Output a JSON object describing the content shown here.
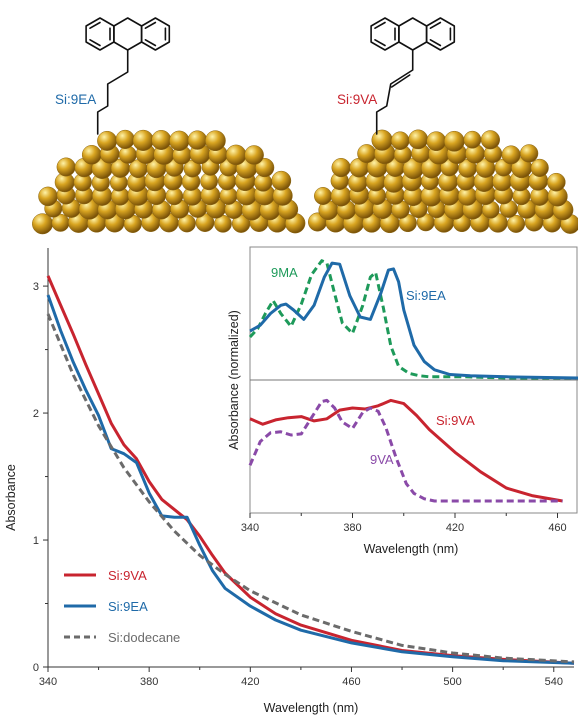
{
  "colors": {
    "si9va": "#c8242f",
    "si9ea": "#1f6aa8",
    "dodecane": "#6b6b6b",
    "ma9": "#1e9a5a",
    "va9": "#8a4aa8",
    "gold": "#d9a521"
  },
  "molecules": [
    {
      "label": "Si:9EA",
      "color": "#1f6aa8",
      "linker": "ethyl"
    },
    {
      "label": "Si:9VA",
      "color": "#c8242f",
      "linker": "vinyl"
    }
  ],
  "chart_data": [
    {
      "type": "line",
      "xlabel": "Wavelength (nm)",
      "ylabel": "Absorbance",
      "xlim": [
        340,
        548
      ],
      "ylim": [
        0,
        3.3
      ],
      "xticks": [
        "340",
        "380",
        "420",
        "460",
        "500",
        "540"
      ],
      "xtick_values": [
        340,
        380,
        420,
        460,
        500,
        540
      ],
      "yticks": [
        "0",
        "1",
        "2",
        "3"
      ],
      "ytick_values": [
        0,
        1,
        2,
        3
      ],
      "legend_position": "bottom-left",
      "series": [
        {
          "name": "Si:9VA",
          "color": "#c8242f",
          "dash": false,
          "x": [
            340,
            345,
            350,
            355,
            360,
            365,
            370,
            375,
            380,
            385,
            390,
            395,
            400,
            405,
            410,
            420,
            430,
            440,
            460,
            480,
            500,
            520,
            548
          ],
          "y": [
            3.08,
            2.85,
            2.62,
            2.38,
            2.15,
            1.92,
            1.75,
            1.64,
            1.46,
            1.32,
            1.24,
            1.16,
            1.03,
            0.88,
            0.74,
            0.55,
            0.42,
            0.33,
            0.21,
            0.13,
            0.09,
            0.06,
            0.03
          ]
        },
        {
          "name": "Si:9EA",
          "color": "#1f6aa8",
          "dash": false,
          "x": [
            340,
            345,
            350,
            355,
            360,
            365,
            370,
            375,
            380,
            385,
            390,
            395,
            400,
            405,
            410,
            420,
            430,
            440,
            460,
            480,
            500,
            520,
            548
          ],
          "y": [
            2.93,
            2.65,
            2.4,
            2.18,
            1.98,
            1.72,
            1.68,
            1.61,
            1.37,
            1.19,
            1.18,
            1.18,
            0.96,
            0.76,
            0.62,
            0.48,
            0.37,
            0.29,
            0.19,
            0.12,
            0.08,
            0.05,
            0.03
          ]
        },
        {
          "name": "Si:dodecane",
          "color": "#6b6b6b",
          "dash": true,
          "x": [
            340,
            350,
            360,
            370,
            380,
            390,
            400,
            410,
            420,
            440,
            460,
            480,
            500,
            520,
            548
          ],
          "y": [
            2.78,
            2.3,
            1.9,
            1.57,
            1.3,
            1.07,
            0.88,
            0.73,
            0.6,
            0.41,
            0.28,
            0.17,
            0.11,
            0.07,
            0.04
          ]
        }
      ]
    },
    {
      "type": "line",
      "xlabel": "Wavelength (nm)",
      "ylabel": "Absorbance (normalized)",
      "xlim": [
        340,
        468
      ],
      "xticks": [
        "340",
        "380",
        "420",
        "460"
      ],
      "xtick_values": [
        340,
        380,
        420,
        460
      ],
      "panels": [
        {
          "position": "top",
          "ylim": [
            0,
            1.1
          ],
          "series": [
            {
              "name": "9MA",
              "color": "#1e9a5a",
              "dash": true,
              "x": [
                340,
                343,
                346,
                349,
                352,
                356,
                360,
                364,
                368,
                370,
                373,
                376,
                380,
                384,
                387,
                389,
                392,
                395,
                398,
                402,
                406,
                410,
                416,
                424,
                440,
                468
              ],
              "y": [
                0.35,
                0.42,
                0.55,
                0.66,
                0.55,
                0.44,
                0.63,
                0.88,
                1.0,
                0.98,
                0.72,
                0.47,
                0.38,
                0.62,
                0.86,
                0.9,
                0.6,
                0.27,
                0.1,
                0.04,
                0.02,
                0.01,
                0.01,
                0.01,
                0.0,
                0.0
              ]
            },
            {
              "name": "Si:9EA",
              "color": "#1f6aa8",
              "dash": false,
              "x": [
                340,
                344,
                348,
                352,
                354,
                357,
                361,
                365,
                369,
                372,
                375,
                379,
                383,
                387,
                391,
                394,
                396,
                398,
                400,
                404,
                408,
                412,
                418,
                426,
                440,
                468
              ],
              "y": [
                0.4,
                0.45,
                0.55,
                0.62,
                0.63,
                0.58,
                0.5,
                0.62,
                0.86,
                0.98,
                0.97,
                0.7,
                0.52,
                0.5,
                0.72,
                0.92,
                0.93,
                0.82,
                0.58,
                0.28,
                0.14,
                0.07,
                0.03,
                0.02,
                0.01,
                0.0
              ]
            }
          ]
        },
        {
          "position": "bottom",
          "ylim": [
            0,
            1.1
          ],
          "series": [
            {
              "name": "Si:9VA",
              "color": "#c8242f",
              "dash": false,
              "x": [
                340,
                345,
                350,
                355,
                360,
                365,
                370,
                375,
                380,
                385,
                390,
                395,
                400,
                405,
                410,
                420,
                430,
                440,
                450,
                462
              ],
              "y": [
                0.76,
                0.71,
                0.75,
                0.77,
                0.78,
                0.74,
                0.76,
                0.84,
                0.86,
                0.85,
                0.88,
                0.93,
                0.9,
                0.79,
                0.66,
                0.45,
                0.27,
                0.12,
                0.05,
                0.0
              ]
            },
            {
              "name": "9VA",
              "color": "#8a4aa8",
              "dash": true,
              "x": [
                340,
                344,
                348,
                352,
                356,
                360,
                364,
                368,
                370,
                373,
                376,
                380,
                384,
                387,
                390,
                393,
                397,
                401,
                404,
                408,
                412,
                420,
                430,
                462
              ],
              "y": [
                0.33,
                0.55,
                0.63,
                0.64,
                0.61,
                0.62,
                0.77,
                0.92,
                0.93,
                0.86,
                0.73,
                0.67,
                0.82,
                0.86,
                0.83,
                0.68,
                0.4,
                0.16,
                0.07,
                0.02,
                0.0,
                0.0,
                0.0,
                0.0
              ]
            }
          ]
        }
      ],
      "labels": [
        {
          "text": "9MA",
          "color": "#1e9a5a"
        },
        {
          "text": "Si:9EA",
          "color": "#1f6aa8"
        },
        {
          "text": "Si:9VA",
          "color": "#c8242f"
        },
        {
          "text": "9VA",
          "color": "#8a4aa8"
        }
      ]
    }
  ]
}
